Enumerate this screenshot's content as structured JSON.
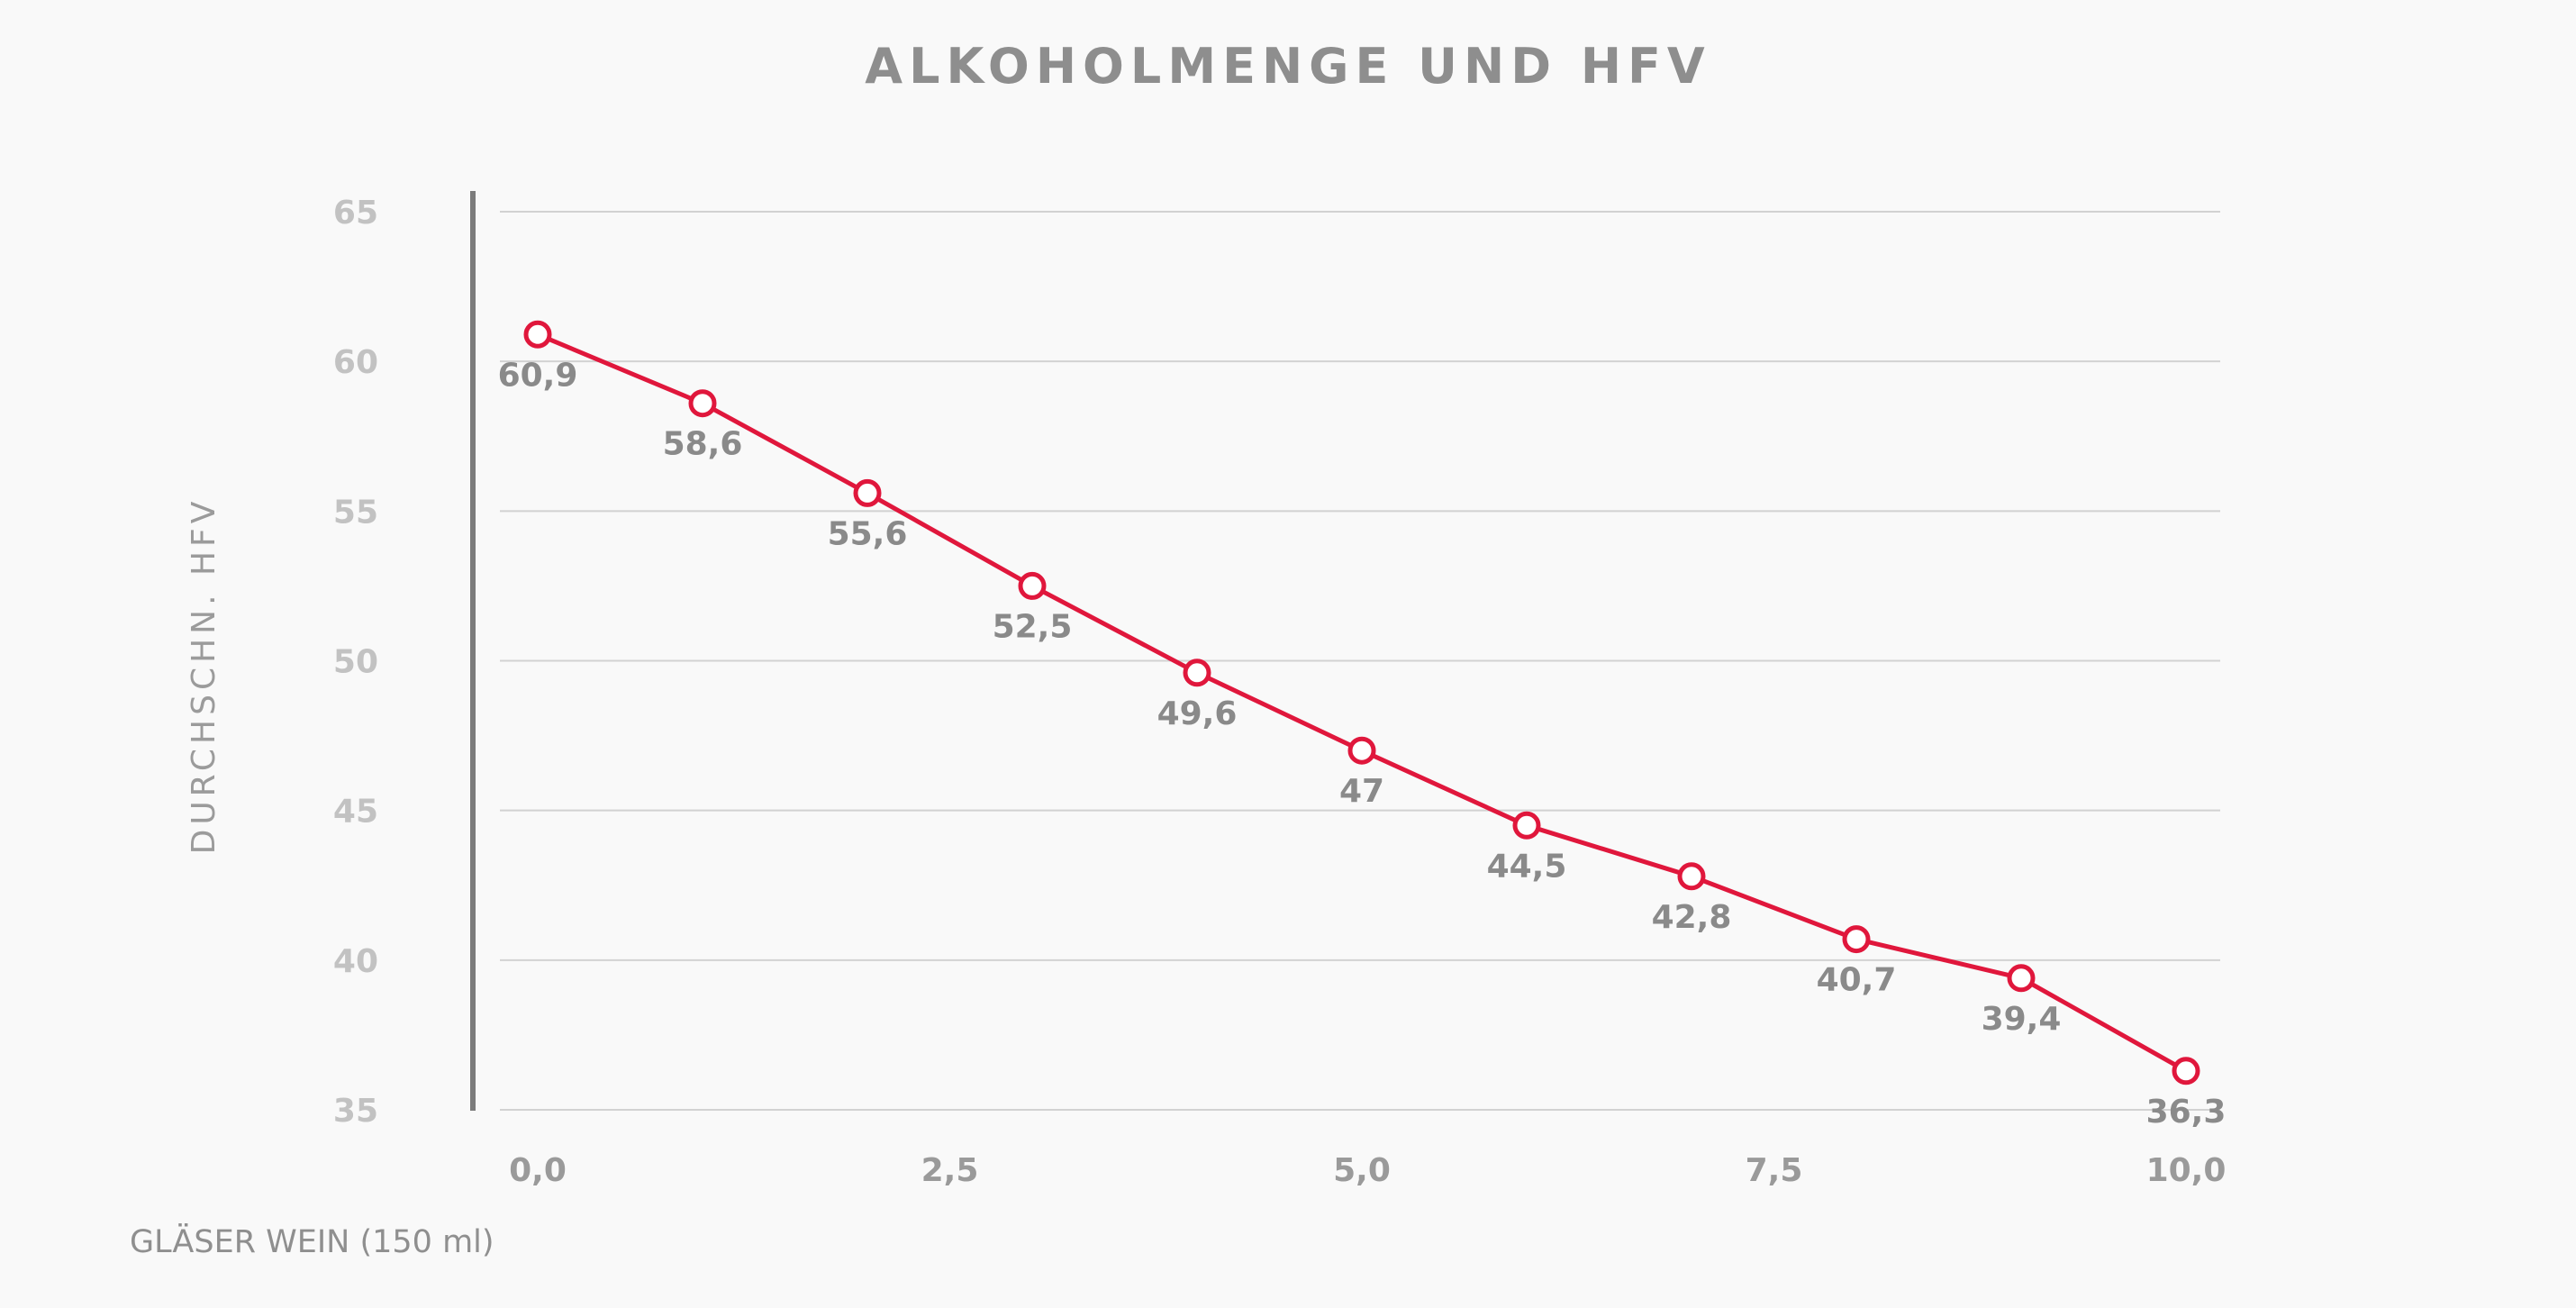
{
  "chart_data": {
    "type": "line",
    "title": "ALKOHOLMENGE UND HFV",
    "xlabel": "GLÄSER WEIN (150 ml)",
    "ylabel": "DURCHSCHN. HFV",
    "xlim": [
      0,
      10
    ],
    "ylim": [
      35,
      65
    ],
    "x_ticks": [
      "0,0",
      "2,5",
      "5,0",
      "7,5",
      "10,0"
    ],
    "x_tick_values": [
      0,
      2.5,
      5,
      7.5,
      10
    ],
    "y_ticks": [
      "65",
      "60",
      "55",
      "50",
      "45",
      "40",
      "35"
    ],
    "y_tick_values": [
      65,
      60,
      55,
      50,
      45,
      40,
      35
    ],
    "grid": true,
    "series": [
      {
        "x": [
          0,
          1,
          2,
          3,
          4,
          5,
          6,
          7,
          8,
          9,
          10
        ],
        "values": [
          60.9,
          58.6,
          55.6,
          52.5,
          49.6,
          47,
          44.5,
          42.8,
          40.7,
          39.4,
          36.3
        ],
        "labels": [
          "60,9",
          "58,6",
          "55,6",
          "52,5",
          "49,6",
          "47",
          "44,5",
          "42,8",
          "40,7",
          "39,4",
          "36,3"
        ],
        "color": "#e0173c"
      }
    ]
  }
}
